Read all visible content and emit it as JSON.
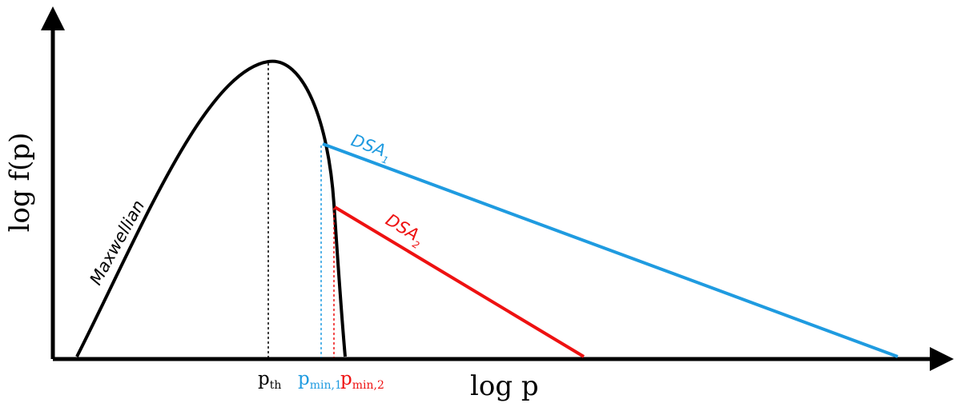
{
  "diagram": {
    "x_axis_label": "log p",
    "y_axis_label": "log f(p)",
    "curves": {
      "maxwellian": {
        "label": "Maxwellian",
        "color": "#000000"
      },
      "dsa1": {
        "label": "DSA",
        "subscript": "1",
        "color": "#1f9be0"
      },
      "dsa2": {
        "label": "DSA",
        "subscript": "2",
        "color": "#ee1111"
      }
    },
    "markers": {
      "p_th": {
        "label": "p",
        "subscript": "th",
        "color": "#000000"
      },
      "p_min1": {
        "label": "p",
        "subscript": "min,1",
        "color": "#1f9be0"
      },
      "p_min2": {
        "label": "p",
        "subscript": "min,2",
        "color": "#ee1111"
      }
    }
  }
}
